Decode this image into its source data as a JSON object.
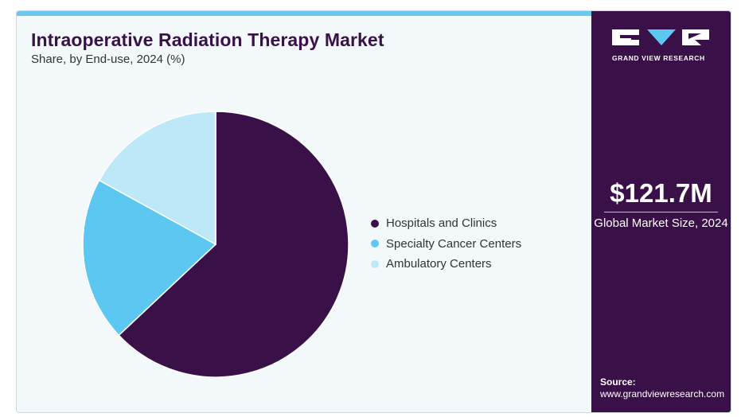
{
  "header": {
    "title": "Intraoperative Radiation Therapy Market",
    "subtitle": "Share, by End-use, 2024 (%)"
  },
  "sidebar": {
    "brand_text": "GRAND VIEW RESEARCH",
    "stat_value": "$121.7M",
    "stat_label": "Global Market Size, 2024",
    "source_label": "Source:",
    "source_url": "www.grandviewresearch.com"
  },
  "colors": {
    "accent_bar": "#6ac8ef",
    "sidebar_bg": "#3a1048",
    "hospitals": "#3a1048",
    "specialty": "#5cc8f2",
    "ambulatory": "#bde8f8"
  },
  "chart_data": {
    "type": "pie",
    "title": "Intraoperative Radiation Therapy Market",
    "subtitle": "Share, by End-use, 2024 (%)",
    "legend_position": "right",
    "start_angle_deg": 0,
    "direction": "clockwise",
    "categories": [
      "Hospitals and Clinics",
      "Specialty Cancer Centers",
      "Ambulatory Centers"
    ],
    "values": [
      63,
      20,
      17
    ],
    "colors": [
      "#3a1048",
      "#5cc8f2",
      "#bde8f8"
    ]
  }
}
